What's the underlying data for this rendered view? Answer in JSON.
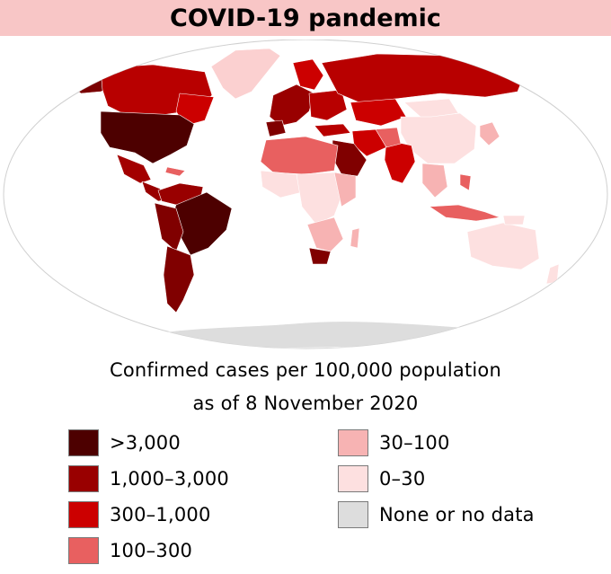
{
  "title": "COVID-19 pandemic",
  "caption": {
    "line1": "Confirmed cases per 100,000 population",
    "line2": "as of 8 November 2020"
  },
  "legend": [
    {
      "label": ">3,000",
      "color": "#4d0000"
    },
    {
      "label": "1,000–3,000",
      "color": "#990000"
    },
    {
      "label": "300–1,000",
      "color": "#cc0000"
    },
    {
      "label": "100–300",
      "color": "#e86060"
    },
    {
      "label": "30–100",
      "color": "#f7b3b3"
    },
    {
      "label": "0–30",
      "color": "#fde0e0"
    },
    {
      "label": "None or no data",
      "color": "#dddddd"
    }
  ],
  "colors": {
    "title_background": "#f8c6c6",
    "ocean": "#ffffff"
  }
}
